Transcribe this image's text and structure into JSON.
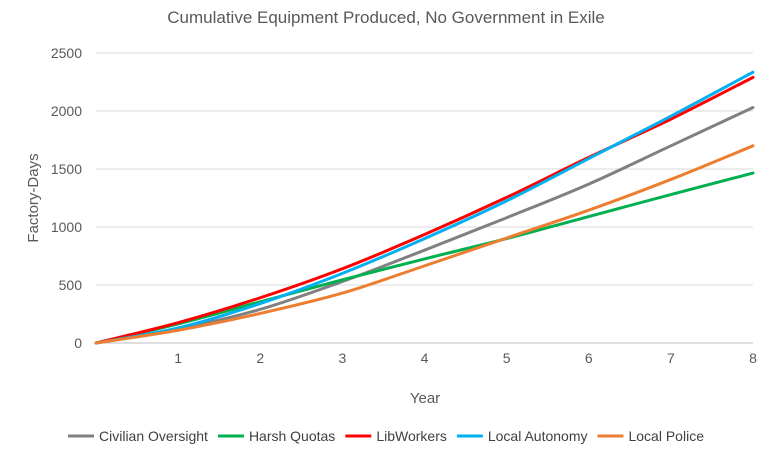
{
  "chart_data": {
    "type": "line",
    "title": "Cumulative Equipment Produced, No Government in Exile",
    "xlabel": "Year",
    "ylabel": "Factory-Days",
    "xlim": [
      0,
      8
    ],
    "ylim": [
      0,
      2500
    ],
    "xticks": [
      1,
      2,
      3,
      4,
      5,
      6,
      7,
      8
    ],
    "yticks": [
      0,
      500,
      1000,
      1500,
      2000,
      2500
    ],
    "grid": "horizontal",
    "legend_position": "bottom",
    "series": [
      {
        "name": "Civilian Oversight",
        "color": "#808080",
        "x": [
          0,
          1,
          2,
          3,
          4,
          5,
          6,
          7,
          8
        ],
        "y": [
          0,
          120,
          290,
          530,
          800,
          1080,
          1370,
          1700,
          2030
        ]
      },
      {
        "name": "Harsh Quotas",
        "color": "#00b050",
        "x": [
          0,
          1,
          2,
          3,
          4,
          5,
          6,
          7,
          8
        ],
        "y": [
          0,
          165,
          355,
          545,
          725,
          900,
          1090,
          1280,
          1465
        ]
      },
      {
        "name": "LibWorkers",
        "color": "#ff0000",
        "x": [
          0,
          1,
          2,
          3,
          4,
          5,
          6,
          7,
          8
        ],
        "y": [
          0,
          175,
          390,
          640,
          935,
          1255,
          1600,
          1930,
          2290
        ]
      },
      {
        "name": "Local Autonomy",
        "color": "#00b0f0",
        "x": [
          0,
          1,
          2,
          3,
          4,
          5,
          6,
          7,
          8
        ],
        "y": [
          0,
          130,
          340,
          600,
          900,
          1225,
          1590,
          1955,
          2335
        ]
      },
      {
        "name": "Local Police",
        "color": "#ed7d31",
        "x": [
          0,
          1,
          2,
          3,
          4,
          5,
          6,
          7,
          8
        ],
        "y": [
          0,
          110,
          255,
          430,
          665,
          905,
          1145,
          1410,
          1700
        ]
      }
    ]
  }
}
